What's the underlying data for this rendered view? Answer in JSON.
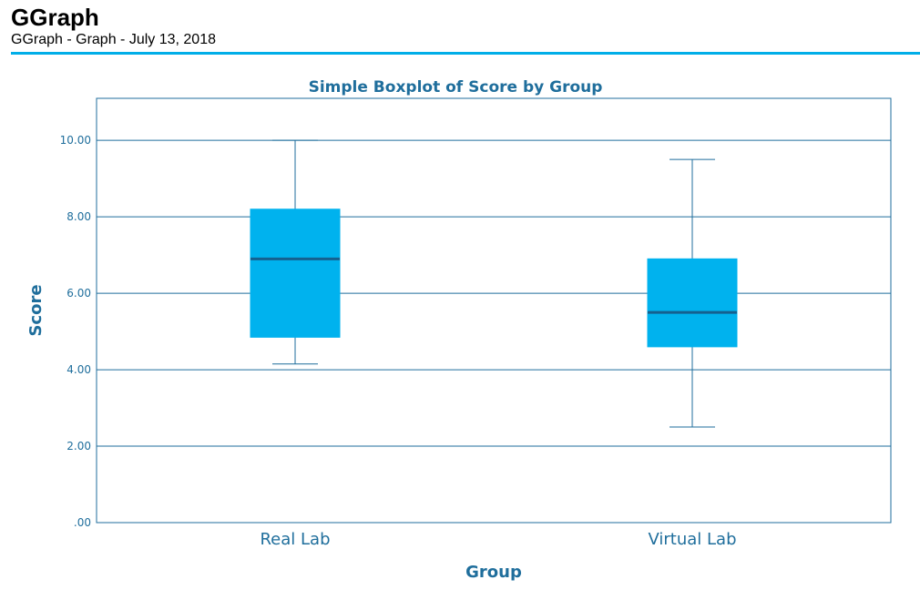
{
  "header": {
    "title": "GGraph",
    "subtitle": "GGraph - Graph - July 13, 2018"
  },
  "colors": {
    "accent": "#00aee8",
    "axis": "#1f6e9c",
    "box_fill": "#00b2ee",
    "median": "#15608f",
    "grid": "#1f6e9c"
  },
  "chart_data": {
    "type": "boxplot",
    "title": "Simple Boxplot of Score by Group",
    "xlabel": "Group",
    "ylabel": "Score",
    "ylim": [
      0,
      11.1
    ],
    "yticks": [
      0,
      2,
      4,
      6,
      8,
      10
    ],
    "ytick_labels": [
      ".00",
      "2.00",
      "4.00",
      "6.00",
      "8.00",
      "10.00"
    ],
    "grid": true,
    "categories": [
      "Real Lab",
      "Virtual Lab"
    ],
    "boxes": [
      {
        "category": "Real Lab",
        "min": 4.15,
        "q1": 4.85,
        "median": 6.9,
        "q3": 8.2,
        "max": 10.0
      },
      {
        "category": "Virtual Lab",
        "min": 2.5,
        "q1": 4.6,
        "median": 5.5,
        "q3": 6.9,
        "max": 9.5
      }
    ]
  }
}
